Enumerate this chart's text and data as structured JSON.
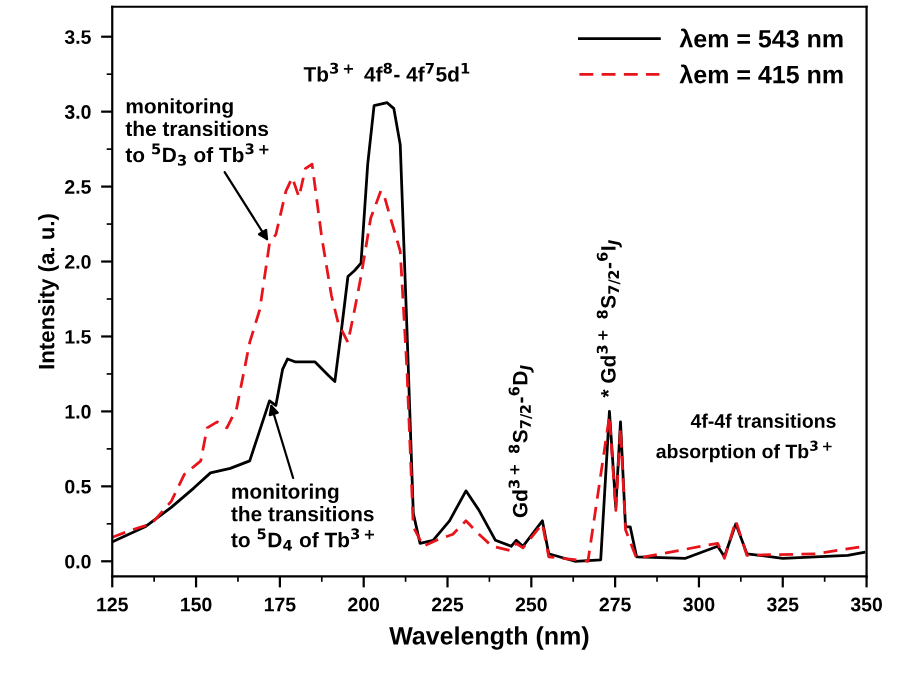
{
  "chart_data": {
    "type": "line",
    "xlabel": "Wavelength (nm)",
    "ylabel": "Intensity (a. u.)",
    "xlim": [
      125,
      350
    ],
    "xticks": [
      125,
      150,
      175,
      200,
      225,
      250,
      275,
      300,
      325,
      350
    ],
    "ylim": [
      -0.1,
      3.7
    ],
    "yticks": [
      {
        "value": 0,
        "label": "0.0"
      },
      {
        "value": 0.5,
        "label": "0.5"
      },
      {
        "value": 1,
        "label": "1.0"
      },
      {
        "value": 1.5,
        "label": "1.5"
      },
      {
        "value": 2,
        "label": "2.0"
      },
      {
        "value": 2.5,
        "label": "2.5"
      },
      {
        "value": 3,
        "label": "3.0"
      },
      {
        "value": 3.5,
        "label": "3.5"
      }
    ],
    "legend": "top right",
    "grid": false,
    "series": [
      {
        "name": "λem = 543 nm",
        "color": "#000000",
        "line_style": "solid",
        "x": [
          125,
          134.8,
          142.6,
          149.4,
          154.3,
          160.2,
          166,
          171.9,
          173.8,
          175.8,
          177.3,
          179.7,
          185.5,
          189.5,
          191.4,
          193.4,
          195.3,
          197.3,
          199.2,
          201.2,
          203.1,
          207,
          209,
          210.9,
          212.9,
          214.8,
          216.8,
          220.7,
          225.6,
          230.5,
          234.4,
          239.3,
          244,
          245.5,
          247.5,
          253.3,
          255.2,
          263,
          270.7,
          273.3,
          275.2,
          276.6,
          278.1,
          279.5,
          281.4,
          296,
          305.6,
          307.6,
          311,
          314.3,
          325,
          344.4,
          349.2
        ],
        "values": [
          0.13,
          0.23,
          0.36,
          0.49,
          0.59,
          0.62,
          0.67,
          1.07,
          1.04,
          1.28,
          1.35,
          1.33,
          1.33,
          1.24,
          1.2,
          1.55,
          1.9,
          1.94,
          1.99,
          2.65,
          3.04,
          3.06,
          3.02,
          2.78,
          1.55,
          0.32,
          0.12,
          0.14,
          0.27,
          0.47,
          0.34,
          0.14,
          0.1,
          0.14,
          0.1,
          0.27,
          0.05,
          0,
          0.01,
          1.0,
          0.36,
          0.93,
          0.23,
          0.23,
          0.03,
          0.02,
          0.1,
          0.03,
          0.25,
          0.05,
          0.02,
          0.04,
          0.06
        ]
      },
      {
        "name": "λem = 415 nm",
        "color": "#e8141c",
        "line_style": "dashed",
        "x": [
          125,
          130.9,
          136.7,
          142.6,
          146.5,
          151.4,
          153.3,
          156.3,
          159.2,
          162.1,
          166,
          169,
          171.9,
          173.8,
          176.8,
          178.7,
          180.7,
          182.6,
          184.6,
          187.5,
          190.4,
          192.4,
          195.3,
          197.3,
          199.2,
          202.1,
          205.1,
          206,
          208,
          210.9,
          212.9,
          214.8,
          217.8,
          221.7,
          226.6,
          230.5,
          234.4,
          238.3,
          244,
          245.5,
          247.5,
          253.3,
          255.2,
          266.9,
          273.3,
          275.2,
          276.6,
          278.1,
          281.4,
          305.6,
          307.6,
          311,
          314.3,
          334.7,
          349.2
        ],
        "values": [
          0.16,
          0.21,
          0.25,
          0.4,
          0.58,
          0.67,
          0.89,
          0.93,
          0.89,
          1.02,
          1.46,
          1.68,
          2.12,
          2.18,
          2.47,
          2.56,
          2.43,
          2.62,
          2.65,
          2.16,
          1.77,
          1.59,
          1.46,
          1.68,
          1.9,
          2.29,
          2.47,
          2.45,
          2.29,
          2.07,
          1.28,
          0.23,
          0.1,
          0.14,
          0.18,
          0.27,
          0.18,
          0.1,
          0.07,
          0.12,
          0.09,
          0.25,
          0.03,
          0,
          0.97,
          0.34,
          0.89,
          0.21,
          0.02,
          0.12,
          0.02,
          0.27,
          0.04,
          0.05,
          0.1
        ]
      }
    ],
    "annotations": [
      {
        "text": "monitoring\nthe transitions\nto $^{5}$D$_{3}$ of Tb$^{3+}$",
        "x": 172,
        "y": 2.12
      },
      {
        "text": "monitoring\nthe transitions\nto $^{5}$D$_{4}$ of Tb$^{3+}$",
        "x": 172,
        "y": 1.07
      },
      {
        "text": "Tb$^{3+}$ 4f$^{8}$- 4f$^{7}$5d$^{1}$",
        "x": 207,
        "y": 3.06
      },
      {
        "text": "Gd$^{3+}$ $^{8}$S$_{7/2}$-$^{6}$D$_{J}$",
        "x": 247,
        "y": 0.14
      },
      {
        "text": "* Gd$^{3+}$ $^{8}$S$_{7/2}$-$^{6}$I$_{J}$",
        "x": 273.3,
        "y": 1.0
      },
      "4f-4f transitions\nabsorption of Tb$^{3+}$"
    ]
  }
}
